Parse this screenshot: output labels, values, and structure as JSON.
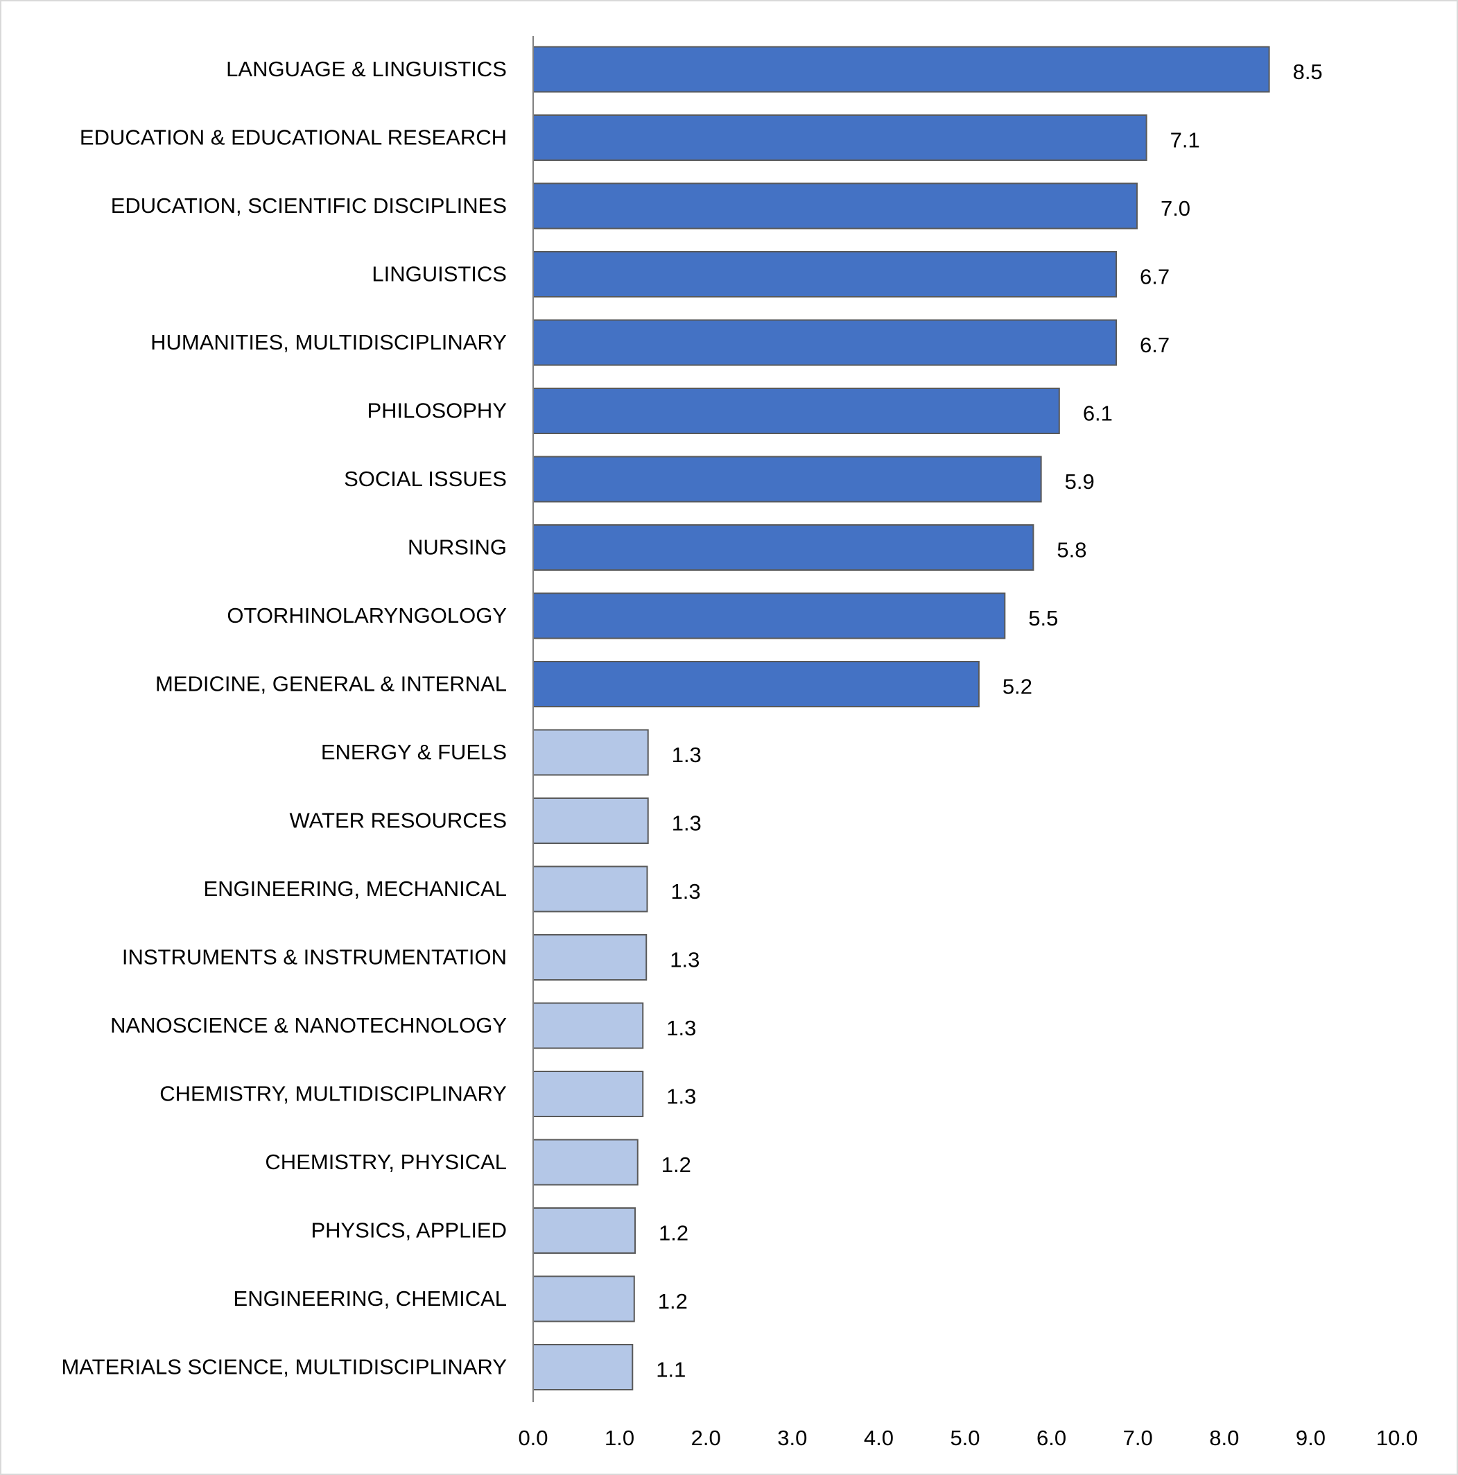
{
  "chart_data": {
    "type": "bar",
    "orientation": "horizontal",
    "title": "",
    "xlabel": "",
    "ylabel": "",
    "xlim": [
      0,
      10
    ],
    "x_ticks": [
      "0.0",
      "1.0",
      "2.0",
      "3.0",
      "4.0",
      "5.0",
      "6.0",
      "7.0",
      "8.0",
      "9.0",
      "10.0"
    ],
    "grid": false,
    "colors": {
      "top_group": "#4472C4",
      "bottom_group": "#B4C7E7",
      "bar_border": "#595959"
    },
    "categories": [
      "LANGUAGE & LINGUISTICS",
      "EDUCATION & EDUCATIONAL RESEARCH",
      "EDUCATION, SCIENTIFIC DISCIPLINES",
      "LINGUISTICS",
      "HUMANITIES, MULTIDISCIPLINARY",
      "PHILOSOPHY",
      "SOCIAL ISSUES",
      "NURSING",
      "OTORHINOLARYNGOLOGY",
      "MEDICINE, GENERAL & INTERNAL",
      "ENERGY & FUELS",
      "WATER RESOURCES",
      "ENGINEERING, MECHANICAL",
      "INSTRUMENTS & INSTRUMENTATION",
      "NANOSCIENCE & NANOTECHNOLOGY",
      "CHEMISTRY, MULTIDISCIPLINARY",
      "CHEMISTRY, PHYSICAL",
      "PHYSICS, APPLIED",
      "ENGINEERING, CHEMICAL",
      "MATERIALS SCIENCE, MULTIDISCIPLINARY"
    ],
    "values": [
      8.52,
      7.1,
      6.99,
      6.75,
      6.75,
      6.09,
      5.88,
      5.79,
      5.46,
      5.16,
      1.33,
      1.33,
      1.32,
      1.31,
      1.27,
      1.27,
      1.21,
      1.18,
      1.17,
      1.15
    ],
    "labels": [
      "8.5",
      "7.1",
      "7.0",
      "6.7",
      "6.7",
      "6.1",
      "5.9",
      "5.8",
      "5.5",
      "5.2",
      "1.3",
      "1.3",
      "1.3",
      "1.3",
      "1.3",
      "1.3",
      "1.2",
      "1.2",
      "1.2",
      "1.1"
    ],
    "group": [
      "top",
      "top",
      "top",
      "top",
      "top",
      "top",
      "top",
      "top",
      "top",
      "top",
      "bottom",
      "bottom",
      "bottom",
      "bottom",
      "bottom",
      "bottom",
      "bottom",
      "bottom",
      "bottom",
      "bottom"
    ]
  }
}
